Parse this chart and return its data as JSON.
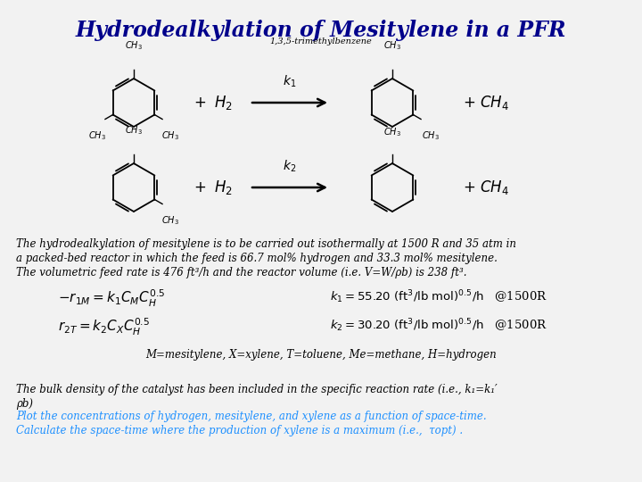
{
  "title": "Hydrodealkylation of Mesitylene in a PFR",
  "subtitle": "1,3,5-trimethylbenzene",
  "bg_color": "#f2f2f2",
  "title_color": "#00008B",
  "text_color": "#000000",
  "blue_text_color": "#1E90FF",
  "body_line1": "The hydrodealkylation of mesitylene is to be carried out isothermally at 1500 R and 35 atm in",
  "body_line2": "a packed-bed reactor in which the feed is 66.7 mol% hydrogen and 33.3 mol% mesitylene.",
  "body_line3": "The volumetric feed rate is 476 ft³/h and the reactor volume (i.e. V=W/ρb) is 238 ft³.",
  "legend_text": "M=mesitylene, X=xylene, T=toluene, Me=methane, H=hydrogen",
  "bulk_line1": "The bulk density of the catalyst has been included in the specific reaction rate (i.e., k₁=k₁′",
  "bulk_line2": "ρb)",
  "plot_line1": "Plot the concentrations of hydrogen, mesitylene, and xylene as a function of space-time.",
  "plot_line2": "Calculate the space-time where the production of xylene is a maximum (i.e.,  τopt) ."
}
